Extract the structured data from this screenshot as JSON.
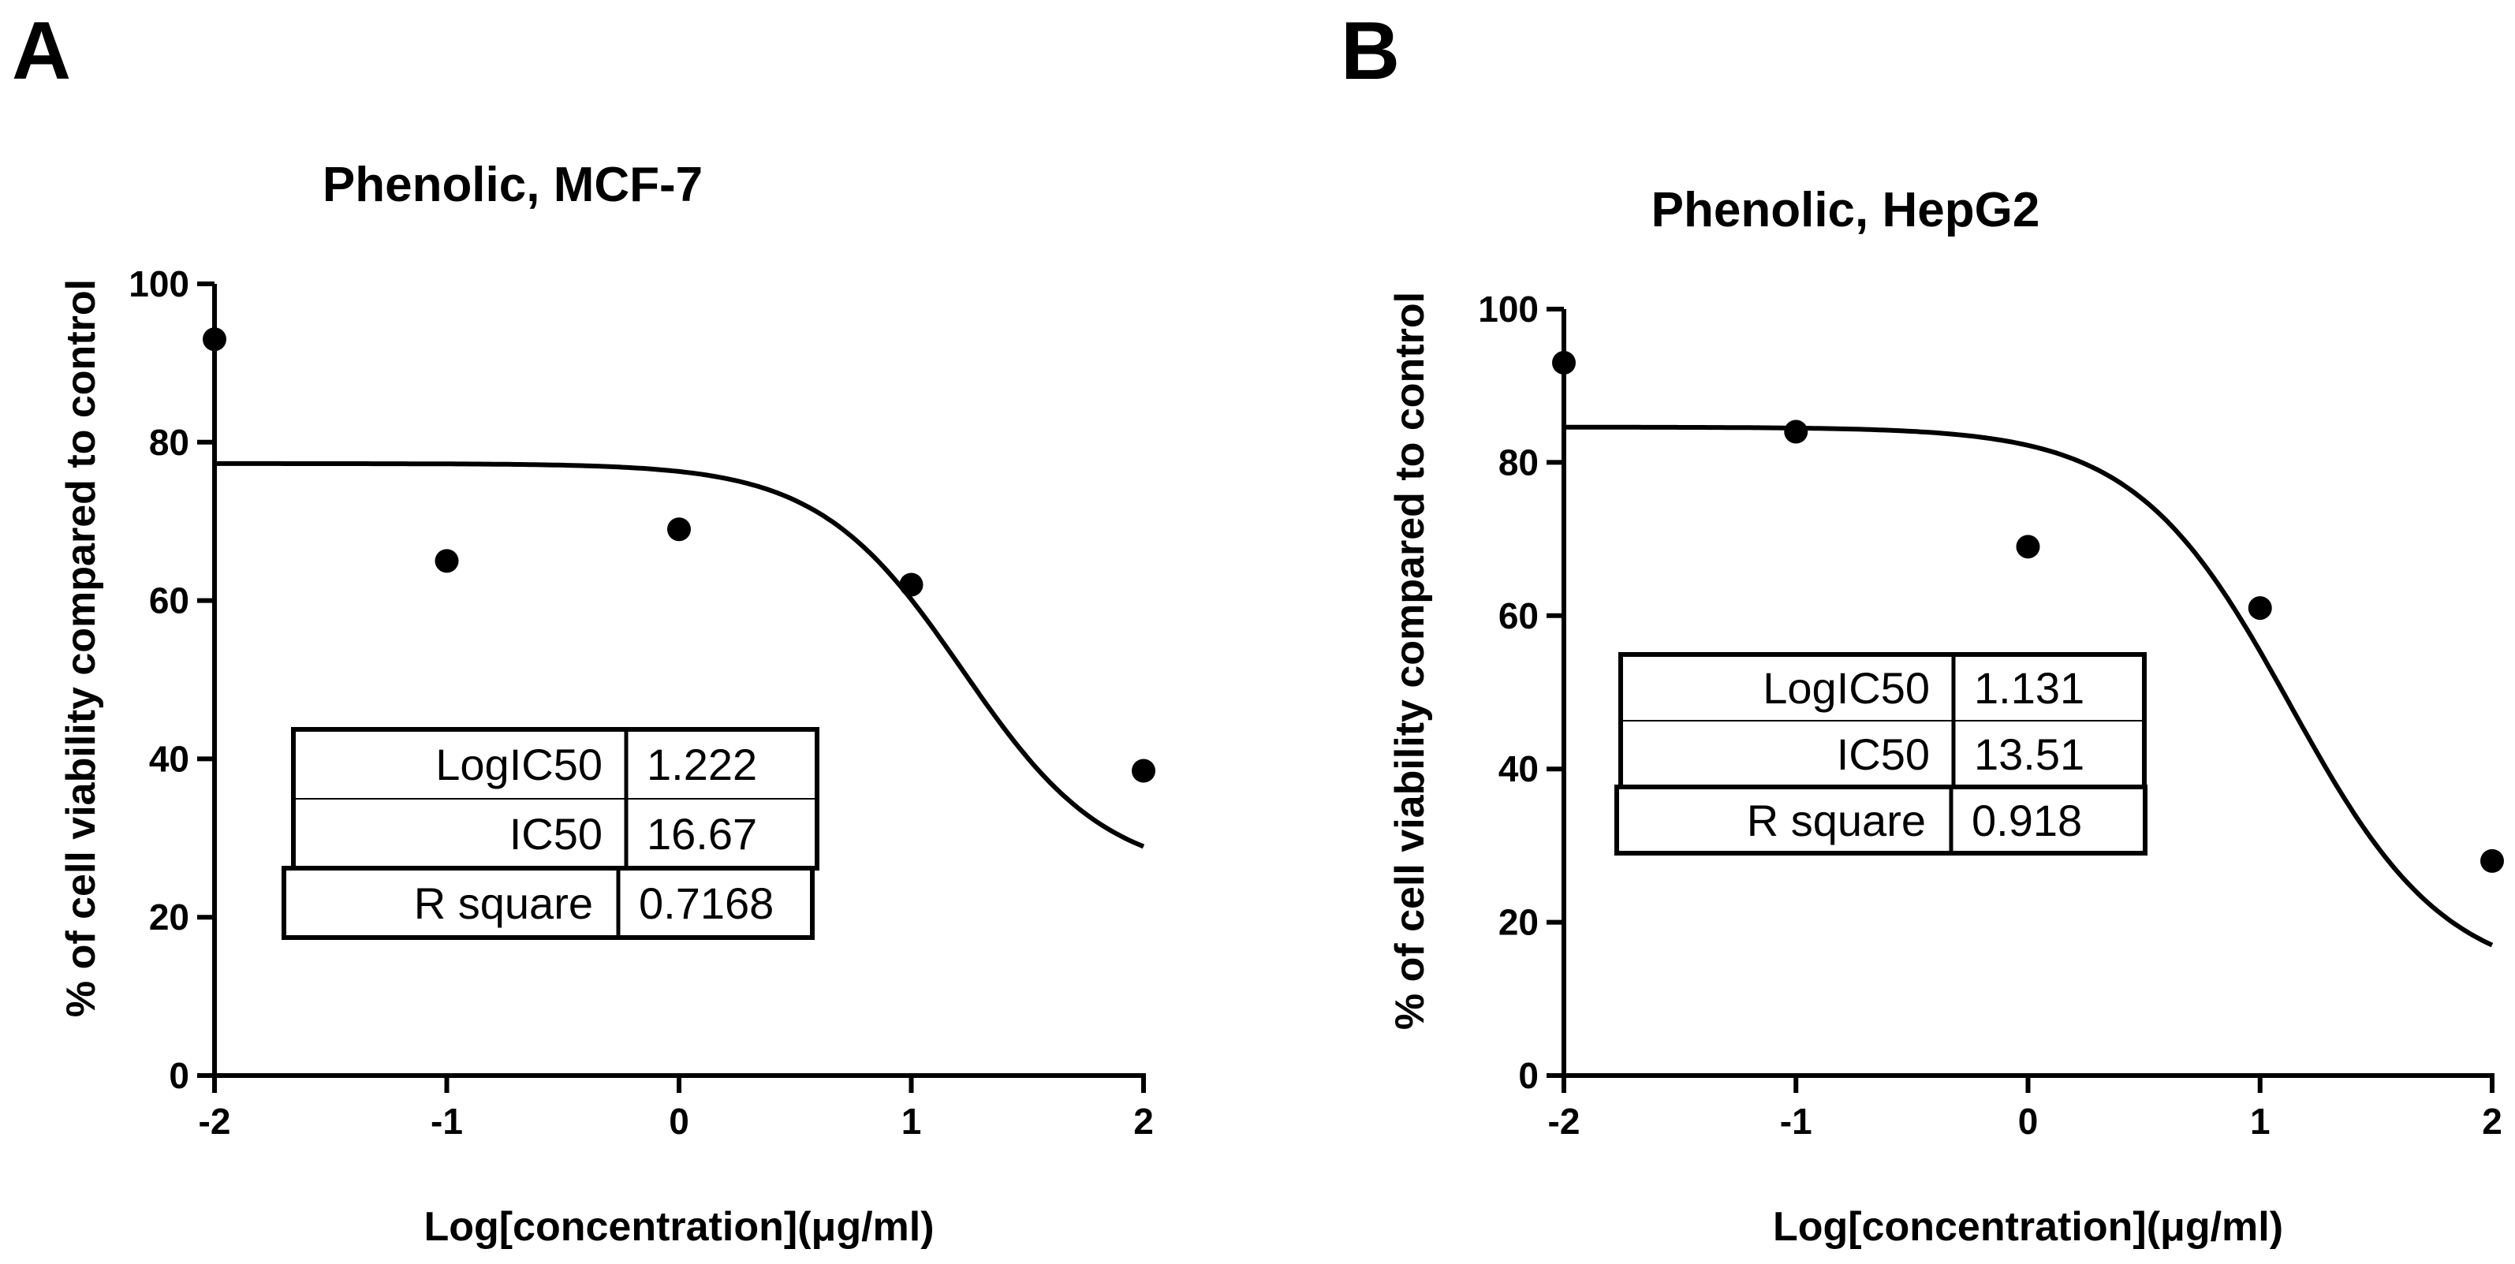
{
  "chart_data": [
    {
      "panel": "A",
      "type": "scatter",
      "title": "Phenolic, MCF-7",
      "xlabel": "Log[concentration](μg/ml)",
      "ylabel": "% of cell viability compared to control",
      "xlim": [
        -2,
        2
      ],
      "ylim": [
        0,
        100
      ],
      "xticks": [
        -2,
        -1,
        0,
        1,
        2
      ],
      "yticks": [
        0,
        20,
        40,
        60,
        80,
        100
      ],
      "points": [
        {
          "x": -2,
          "y": 93
        },
        {
          "x": -1,
          "y": 65
        },
        {
          "x": 0,
          "y": 69
        },
        {
          "x": 1,
          "y": 62
        },
        {
          "x": 2,
          "y": 38.5
        }
      ],
      "fit": {
        "type": "sigmoid",
        "top": 77.3,
        "bottom": 25,
        "logIC50": 1.222,
        "hill": -1.4
      },
      "table": [
        {
          "label": "LogIC50",
          "value": "1.222"
        },
        {
          "label": "IC50",
          "value": "16.67"
        },
        {
          "label": "R square",
          "value": "0.7168"
        }
      ]
    },
    {
      "panel": "B",
      "type": "scatter",
      "title": "Phenolic, HepG2",
      "xlabel": "Log[concentration](μg/ml)",
      "ylabel": "% of cell viability compared to control",
      "xlim": [
        -2,
        2
      ],
      "ylim": [
        0,
        100
      ],
      "xticks": [
        -2,
        -1,
        0,
        1,
        2
      ],
      "yticks": [
        0,
        20,
        40,
        60,
        80,
        100
      ],
      "points": [
        {
          "x": -2,
          "y": 93
        },
        {
          "x": -1,
          "y": 84
        },
        {
          "x": 0,
          "y": 69
        },
        {
          "x": 1,
          "y": 61
        },
        {
          "x": 2,
          "y": 28
        }
      ],
      "fit": {
        "type": "sigmoid",
        "top": 84.6,
        "bottom": 12,
        "logIC50": 1.131,
        "hill": -1.3
      },
      "table": [
        {
          "label": "LogIC50",
          "value": "1.131"
        },
        {
          "label": "IC50",
          "value": "13.51"
        },
        {
          "label": "R square",
          "value": "0.918"
        }
      ]
    }
  ]
}
